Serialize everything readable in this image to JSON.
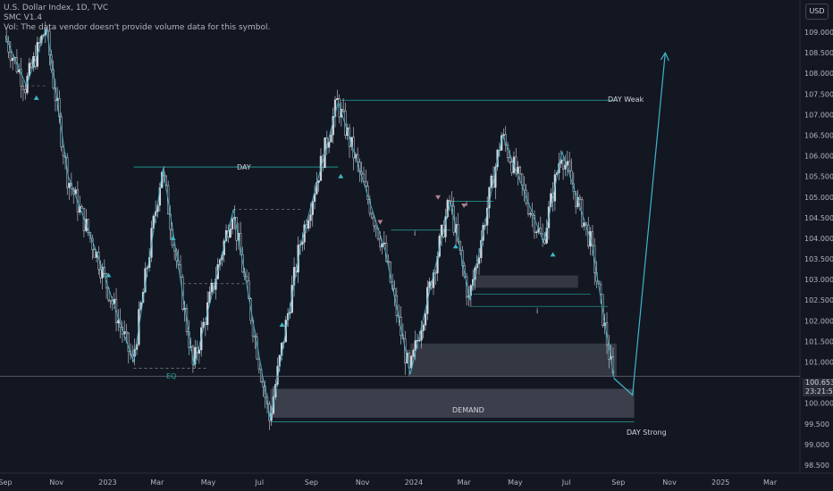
{
  "legend": {
    "line1": "U.S. Dollar Index, 1D, TVC",
    "line2": "SMC V1.4",
    "line3": "Vol: The data vendor doesn't provide volume data for this symbol."
  },
  "currency_button": "USD",
  "price_tag": {
    "price": "100.653",
    "countdown": "23:21:50"
  },
  "colors": {
    "background": "#131722",
    "teal": "#26a69a",
    "cyan": "#3fb6c9",
    "zone": "#4a4e5a",
    "grid": "#1e222d",
    "candle": "#d1d4dc",
    "pink": "#b87e8d"
  },
  "annotations": {
    "day_weak": "DAY Weak",
    "day": "DAY",
    "eq": "EQ",
    "demand": "DEMAND",
    "day_strong": "DAY Strong",
    "i_marker": "i"
  },
  "chart_data": {
    "type": "candlestick",
    "title": "U.S. Dollar Index, 1D, TVC",
    "y_axis": {
      "ticks": [
        "109.000",
        "108.500",
        "108.000",
        "107.500",
        "107.000",
        "106.500",
        "106.000",
        "105.500",
        "105.000",
        "104.500",
        "104.000",
        "103.500",
        "103.000",
        "102.500",
        "102.000",
        "101.500",
        "101.000",
        "100.500",
        "100.000",
        "99.500",
        "99.000",
        "98.500"
      ],
      "ylim": [
        98.3,
        109.7
      ]
    },
    "x_axis": {
      "ticks": [
        "Sep",
        "Nov",
        "2023",
        "Mar",
        "May",
        "Jul",
        "Sep",
        "Nov",
        "2024",
        "Mar",
        "May",
        "Jul",
        "Sep",
        "Nov",
        "2025",
        "Mar"
      ]
    },
    "price_path": [
      {
        "date": "2022-09-01",
        "close": 108.9
      },
      {
        "date": "2022-09-26",
        "close": 107.7
      },
      {
        "date": "2022-10-20",
        "close": 109.1
      },
      {
        "date": "2022-11-15",
        "close": 105.5
      },
      {
        "date": "2022-12-20",
        "close": 103.6
      },
      {
        "date": "2023-01-10",
        "close": 102.3
      },
      {
        "date": "2023-02-01",
        "close": 101.0
      },
      {
        "date": "2023-03-08",
        "close": 105.7
      },
      {
        "date": "2023-04-14",
        "close": 100.9
      },
      {
        "date": "2023-05-31",
        "close": 104.7
      },
      {
        "date": "2023-07-14",
        "close": 99.6
      },
      {
        "date": "2023-08-20",
        "close": 103.9
      },
      {
        "date": "2023-10-03",
        "close": 107.3
      },
      {
        "date": "2023-11-28",
        "close": 103.7
      },
      {
        "date": "2023-12-28",
        "close": 100.7
      },
      {
        "date": "2024-02-14",
        "close": 104.9
      },
      {
        "date": "2024-03-08",
        "close": 102.5
      },
      {
        "date": "2024-04-16",
        "close": 106.5
      },
      {
        "date": "2024-06-04",
        "close": 103.9
      },
      {
        "date": "2024-06-26",
        "close": 106.1
      },
      {
        "date": "2024-07-31",
        "close": 103.9
      },
      {
        "date": "2024-08-27",
        "close": 100.6
      }
    ],
    "last_price": 100.653,
    "projection": [
      {
        "date": "2024-08-27",
        "value": 100.6
      },
      {
        "date": "2024-09-18",
        "value": 100.2
      },
      {
        "date": "2024-10-27",
        "value": 108.5
      }
    ],
    "zones": [
      {
        "label": "DEMAND",
        "x0": "2023-07-14",
        "x1": "2024-09-20",
        "y0": 99.65,
        "y1": 100.35
      },
      {
        "label": "",
        "x0": "2023-12-28",
        "x1": "2024-08-30",
        "y0": 100.65,
        "y1": 101.45
      },
      {
        "label": "",
        "x0": "2024-03-12",
        "x1": "2024-07-15",
        "y0": 102.8,
        "y1": 103.1
      }
    ],
    "levels": [
      {
        "label": "DAY Weak",
        "y": 107.35,
        "x0": "2023-10-03",
        "x1": "2024-08-30"
      },
      {
        "label": "DAY",
        "y": 105.73,
        "x0": "2023-02-01",
        "x1": "2023-10-03"
      },
      {
        "label": "EQ",
        "y": 100.85,
        "x0": "2023-02-01",
        "x1": "2023-05-01"
      },
      {
        "label": "DAY Strong",
        "y": 99.55,
        "x0": "2023-07-14",
        "x1": "2024-09-20"
      }
    ],
    "grid": false,
    "legend": "top-left"
  }
}
